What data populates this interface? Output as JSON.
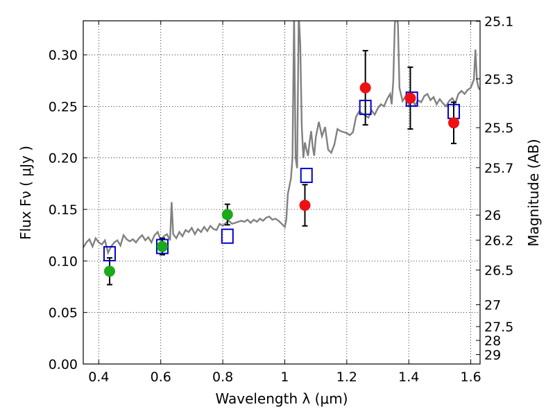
{
  "chart_data": {
    "type": "scatter",
    "xlabel": "Wavelength  λ (μm)",
    "ylabel": "Flux  Fν  ( μJy )",
    "y2label": "Magnitude (AB)",
    "xlim": [
      0.35,
      1.63
    ],
    "ylim": [
      0.0,
      0.333
    ],
    "grid": true,
    "x_ticks": [
      {
        "value": 0.4,
        "label": "0.4"
      },
      {
        "value": 0.6,
        "label": "0.6"
      },
      {
        "value": 0.8,
        "label": "0.8"
      },
      {
        "value": 1.0,
        "label": "1"
      },
      {
        "value": 1.2,
        "label": "1.2"
      },
      {
        "value": 1.4,
        "label": "1.4"
      },
      {
        "value": 1.6,
        "label": "1.6"
      }
    ],
    "y_ticks": [
      {
        "value": 0.0,
        "label": "0.00"
      },
      {
        "value": 0.05,
        "label": "0.05"
      },
      {
        "value": 0.1,
        "label": "0.10"
      },
      {
        "value": 0.15,
        "label": "0.15"
      },
      {
        "value": 0.2,
        "label": "0.20"
      },
      {
        "value": 0.25,
        "label": "0.25"
      },
      {
        "value": 0.3,
        "label": "0.30"
      }
    ],
    "y2_ticks": [
      {
        "label": "25.1",
        "flux": 0.3325
      },
      {
        "label": "25.3",
        "flux": 0.2766
      },
      {
        "label": "25.5",
        "flux": 0.2293
      },
      {
        "label": "25.7",
        "flux": 0.1905
      },
      {
        "label": "26",
        "flux": 0.1445
      },
      {
        "label": "26.2",
        "flux": 0.1202
      },
      {
        "label": "26.5",
        "flux": 0.0912
      },
      {
        "label": "27",
        "flux": 0.0575
      },
      {
        "label": "27.5",
        "flux": 0.0363
      },
      {
        "label": "28",
        "flux": 0.0229
      },
      {
        "label": "29",
        "flux": 0.0091
      }
    ],
    "series": [
      {
        "kind": "spectrum",
        "color": "#808080",
        "points": [
          [
            0.35,
            0.113
          ],
          [
            0.36,
            0.118
          ],
          [
            0.37,
            0.121
          ],
          [
            0.38,
            0.114
          ],
          [
            0.39,
            0.122
          ],
          [
            0.4,
            0.118
          ],
          [
            0.41,
            0.116
          ],
          [
            0.42,
            0.12
          ],
          [
            0.43,
            0.108
          ],
          [
            0.44,
            0.114
          ],
          [
            0.45,
            0.118
          ],
          [
            0.46,
            0.12
          ],
          [
            0.47,
            0.115
          ],
          [
            0.48,
            0.125
          ],
          [
            0.49,
            0.121
          ],
          [
            0.5,
            0.119
          ],
          [
            0.51,
            0.121
          ],
          [
            0.52,
            0.118
          ],
          [
            0.53,
            0.122
          ],
          [
            0.54,
            0.125
          ],
          [
            0.55,
            0.12
          ],
          [
            0.56,
            0.123
          ],
          [
            0.57,
            0.118
          ],
          [
            0.58,
            0.125
          ],
          [
            0.59,
            0.128
          ],
          [
            0.6,
            0.12
          ],
          [
            0.61,
            0.124
          ],
          [
            0.62,
            0.126
          ],
          [
            0.63,
            0.12
          ],
          [
            0.635,
            0.157
          ],
          [
            0.64,
            0.126
          ],
          [
            0.65,
            0.122
          ],
          [
            0.66,
            0.128
          ],
          [
            0.67,
            0.124
          ],
          [
            0.68,
            0.13
          ],
          [
            0.69,
            0.128
          ],
          [
            0.7,
            0.132
          ],
          [
            0.71,
            0.126
          ],
          [
            0.72,
            0.131
          ],
          [
            0.73,
            0.128
          ],
          [
            0.74,
            0.133
          ],
          [
            0.75,
            0.129
          ],
          [
            0.76,
            0.134
          ],
          [
            0.77,
            0.131
          ],
          [
            0.78,
            0.13
          ],
          [
            0.79,
            0.136
          ],
          [
            0.8,
            0.134
          ],
          [
            0.81,
            0.137
          ],
          [
            0.82,
            0.139
          ],
          [
            0.83,
            0.136
          ],
          [
            0.84,
            0.137
          ],
          [
            0.85,
            0.138
          ],
          [
            0.86,
            0.139
          ],
          [
            0.87,
            0.138
          ],
          [
            0.88,
            0.14
          ],
          [
            0.89,
            0.137
          ],
          [
            0.9,
            0.14
          ],
          [
            0.91,
            0.138
          ],
          [
            0.92,
            0.141
          ],
          [
            0.93,
            0.139
          ],
          [
            0.94,
            0.142
          ],
          [
            0.95,
            0.143
          ],
          [
            0.96,
            0.14
          ],
          [
            0.97,
            0.141
          ],
          [
            0.98,
            0.139
          ],
          [
            0.99,
            0.136
          ],
          [
            1.0,
            0.133
          ],
          [
            1.005,
            0.14
          ],
          [
            1.01,
            0.165
          ],
          [
            1.02,
            0.18
          ],
          [
            1.025,
            0.2
          ],
          [
            1.03,
            0.34
          ],
          [
            1.035,
            0.2
          ],
          [
            1.04,
            0.19
          ],
          [
            1.045,
            0.34
          ],
          [
            1.05,
            0.31
          ],
          [
            1.055,
            0.23
          ],
          [
            1.06,
            0.2
          ],
          [
            1.065,
            0.215
          ],
          [
            1.07,
            0.208
          ],
          [
            1.075,
            0.202
          ],
          [
            1.08,
            0.215
          ],
          [
            1.085,
            0.226
          ],
          [
            1.09,
            0.211
          ],
          [
            1.095,
            0.202
          ],
          [
            1.1,
            0.22
          ],
          [
            1.11,
            0.235
          ],
          [
            1.12,
            0.221
          ],
          [
            1.13,
            0.23
          ],
          [
            1.14,
            0.208
          ],
          [
            1.15,
            0.205
          ],
          [
            1.16,
            0.213
          ],
          [
            1.17,
            0.228
          ],
          [
            1.18,
            0.226
          ],
          [
            1.19,
            0.225
          ],
          [
            1.2,
            0.224
          ],
          [
            1.21,
            0.222
          ],
          [
            1.22,
            0.225
          ],
          [
            1.23,
            0.24
          ],
          [
            1.24,
            0.245
          ],
          [
            1.25,
            0.243
          ],
          [
            1.26,
            0.241
          ],
          [
            1.27,
            0.239
          ],
          [
            1.28,
            0.246
          ],
          [
            1.29,
            0.242
          ],
          [
            1.3,
            0.248
          ],
          [
            1.31,
            0.252
          ],
          [
            1.32,
            0.25
          ],
          [
            1.33,
            0.257
          ],
          [
            1.34,
            0.262
          ],
          [
            1.345,
            0.252
          ],
          [
            1.35,
            0.275
          ],
          [
            1.355,
            0.33
          ],
          [
            1.36,
            0.34
          ],
          [
            1.365,
            0.33
          ],
          [
            1.37,
            0.268
          ],
          [
            1.38,
            0.255
          ],
          [
            1.39,
            0.26
          ],
          [
            1.4,
            0.252
          ],
          [
            1.41,
            0.258
          ],
          [
            1.42,
            0.251
          ],
          [
            1.43,
            0.256
          ],
          [
            1.44,
            0.254
          ],
          [
            1.45,
            0.26
          ],
          [
            1.46,
            0.262
          ],
          [
            1.47,
            0.256
          ],
          [
            1.48,
            0.259
          ],
          [
            1.49,
            0.252
          ],
          [
            1.5,
            0.257
          ],
          [
            1.51,
            0.253
          ],
          [
            1.52,
            0.25
          ],
          [
            1.53,
            0.255
          ],
          [
            1.54,
            0.258
          ],
          [
            1.55,
            0.253
          ],
          [
            1.56,
            0.262
          ],
          [
            1.57,
            0.265
          ],
          [
            1.58,
            0.262
          ],
          [
            1.59,
            0.266
          ],
          [
            1.6,
            0.268
          ],
          [
            1.61,
            0.276
          ],
          [
            1.615,
            0.305
          ],
          [
            1.62,
            0.275
          ],
          [
            1.625,
            0.268
          ],
          [
            1.63,
            0.266
          ]
        ]
      },
      {
        "kind": "model-squares",
        "color": "#0000cc",
        "points": [
          [
            0.435,
            0.107
          ],
          [
            0.605,
            0.114
          ],
          [
            0.815,
            0.124
          ],
          [
            1.07,
            0.183
          ],
          [
            1.26,
            0.249
          ],
          [
            1.41,
            0.257
          ],
          [
            1.545,
            0.245
          ]
        ]
      },
      {
        "kind": "observed-green",
        "color": "#1aaa1a",
        "points": [
          {
            "x": 0.435,
            "y": 0.09,
            "err": 0.013
          },
          {
            "x": 0.605,
            "y": 0.114,
            "err": 0.008
          },
          {
            "x": 0.815,
            "y": 0.145,
            "err": 0.01
          }
        ]
      },
      {
        "kind": "observed-red",
        "color": "#ee1111",
        "points": [
          {
            "x": 1.065,
            "y": 0.154,
            "err": 0.02
          },
          {
            "x": 1.26,
            "y": 0.268,
            "err": 0.036
          },
          {
            "x": 1.405,
            "y": 0.258,
            "err": 0.03
          },
          {
            "x": 1.545,
            "y": 0.234,
            "err": 0.02
          }
        ]
      }
    ]
  }
}
